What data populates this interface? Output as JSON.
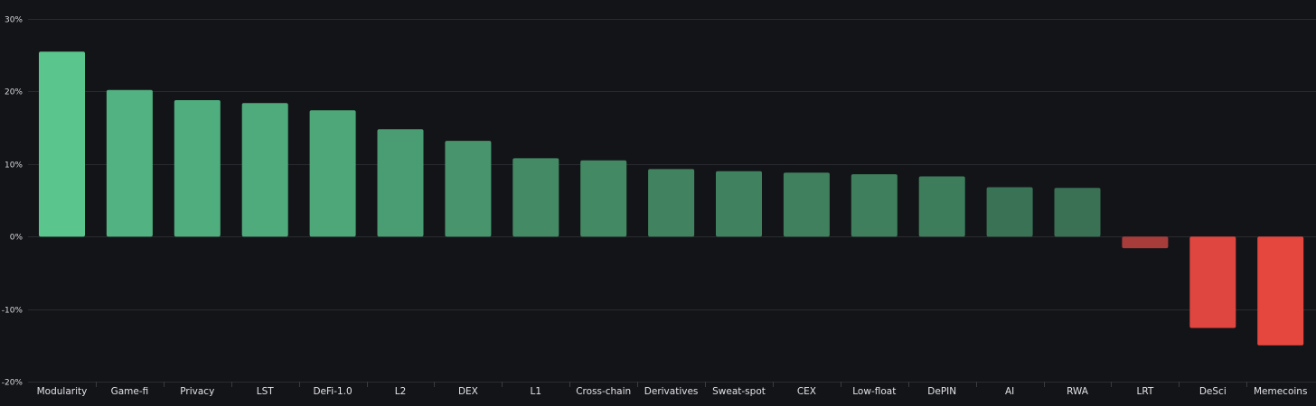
{
  "chart_data": {
    "type": "bar",
    "categories": [
      "Modularity",
      "Game-fi",
      "Privacy",
      "LST",
      "DeFi-1.0",
      "L2",
      "DEX",
      "L1",
      "Cross-chain",
      "Derivatives",
      "Sweat-spot",
      "CEX",
      "Low-float",
      "DePIN",
      "AI",
      "RWA",
      "LRT",
      "DeSci",
      "Memecoins"
    ],
    "values": [
      25.5,
      20.2,
      18.8,
      18.4,
      17.4,
      14.8,
      13.2,
      10.8,
      10.5,
      9.3,
      9.0,
      8.8,
      8.6,
      8.3,
      6.8,
      6.7,
      -1.6,
      -12.6,
      -15.0
    ],
    "ylim": [
      -20,
      30
    ],
    "yticks": [
      30,
      20,
      10,
      0,
      -10,
      -20
    ],
    "ytick_labels": [
      "30%",
      "20%",
      "10%",
      "0%",
      "-10%",
      "-20%"
    ],
    "title": "",
    "xlabel": "",
    "ylabel": "",
    "grid": true,
    "colors": {
      "background": "#131418",
      "positive_high": "#5ac68e",
      "positive_low": "#3a7154",
      "negative_small": "#a73c3a",
      "negative_high": "#e5473f",
      "grid": "#2a2b30"
    }
  }
}
